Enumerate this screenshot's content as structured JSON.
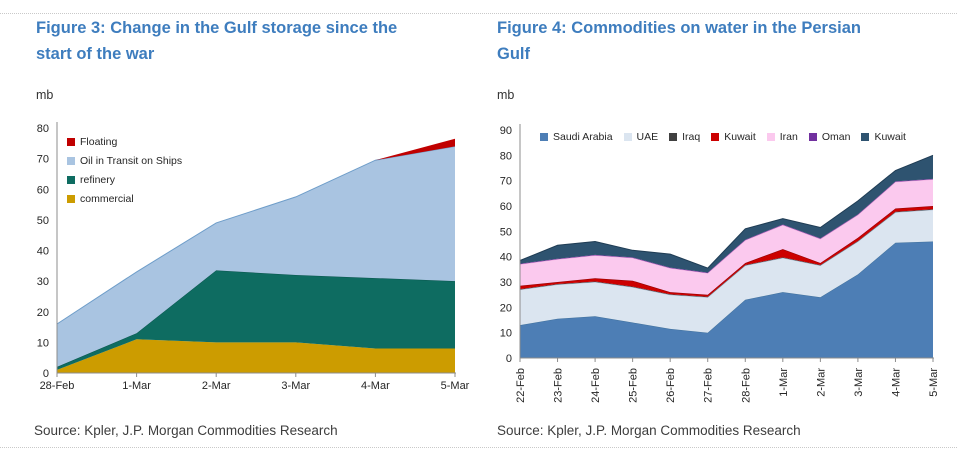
{
  "figures": [
    {
      "title": "Figure 3: Change in the Gulf storage since the start of the war",
      "unit": "mb",
      "source": "Source: Kpler, J.P. Morgan Commodities Research"
    },
    {
      "title": "Figure 4: Commodities on water in the Persian Gulf",
      "unit": "mb",
      "source": "Source: Kpler, J.P. Morgan Commodities Research"
    }
  ],
  "colors": {
    "title_blue": "#3E7DBE",
    "axis_gray": "#8c8c8c"
  },
  "chart_data": [
    {
      "id": "fig3",
      "type": "area",
      "stacked": true,
      "title": "Figure 3: Change in the Gulf storage since the start of the war",
      "ylabel": "mb",
      "xlabel": "",
      "ylim": [
        0,
        80
      ],
      "ytick_step": 10,
      "grid": false,
      "legend_position": "top-left-vertical",
      "legend_reverse": true,
      "categories": [
        "28-Feb",
        "1-Mar",
        "2-Mar",
        "3-Mar",
        "4-Mar",
        "5-Mar"
      ],
      "series": [
        {
          "name": "commercial",
          "color": "#CC9C00",
          "edge": null,
          "values": [
            1,
            11,
            10,
            10,
            8,
            8
          ]
        },
        {
          "name": "refinery",
          "color": "#0E6C61",
          "edge": "#0A564D",
          "values": [
            1,
            2,
            23.5,
            22,
            23,
            22
          ]
        },
        {
          "name": "Oil in Transit on Ships",
          "color": "#A9C4E1",
          "edge": "#6E9DC9",
          "values": [
            14,
            20,
            15.5,
            25.5,
            38.5,
            44
          ]
        },
        {
          "name": "Floating",
          "color": "#C00000",
          "edge": null,
          "values": [
            0,
            0,
            0,
            0,
            0,
            2.5
          ]
        }
      ]
    },
    {
      "id": "fig4",
      "type": "area",
      "stacked": true,
      "title": "Figure 4: Commodities on water in the Persian Gulf",
      "ylabel": "mb",
      "xlabel": "",
      "ylim": [
        0,
        90
      ],
      "ytick_step": 10,
      "grid": false,
      "legend_position": "top-horizontal",
      "legend_reverse": false,
      "categories": [
        "22-Feb",
        "23-Feb",
        "24-Feb",
        "25-Feb",
        "26-Feb",
        "27-Feb",
        "28-Feb",
        "1-Mar",
        "2-Mar",
        "3-Mar",
        "4-Mar",
        "5-Mar"
      ],
      "series": [
        {
          "name": "Saudi Arabia",
          "color": "#4D7EB5",
          "edge": "#41719C",
          "values": [
            13,
            15.5,
            16.5,
            14,
            11.5,
            10,
            23,
            26,
            24,
            33,
            45.5,
            46
          ]
        },
        {
          "name": "UAE",
          "color": "#DBE5F0",
          "edge": "#AFC0D4",
          "values": [
            14,
            13.5,
            13.5,
            14,
            13.5,
            14,
            13.5,
            13.5,
            12.5,
            13,
            12,
            12.5
          ]
        },
        {
          "name": "Iraq",
          "color": "#404040",
          "edge": null,
          "values": [
            0.2,
            0.2,
            0.2,
            0.2,
            0.2,
            0.2,
            0.2,
            0.2,
            0.2,
            0.2,
            0.2,
            0.2
          ]
        },
        {
          "name": "Kuwait",
          "color": "#CC0000",
          "edge": "#8E0000",
          "values": [
            1.3,
            0.8,
            1.3,
            2.3,
            0.8,
            0.8,
            0.8,
            3.3,
            0.8,
            1.3,
            1.3,
            1.3
          ]
        },
        {
          "name": "Iran",
          "color": "#FBC9EE",
          "edge": "#EFA8DC",
          "values": [
            8.5,
            9,
            9,
            9,
            9.5,
            8.5,
            9,
            9.5,
            9.5,
            9,
            10.5,
            10.5
          ]
        },
        {
          "name": "Oman",
          "color": "#71309F",
          "edge": null,
          "values": [
            0.2,
            0.2,
            0.2,
            0.2,
            0.2,
            0.2,
            0.2,
            0.2,
            0.2,
            0.2,
            0.2,
            0.2
          ]
        },
        {
          "name": "Kuwait",
          "color": "#2E5370",
          "edge": "#1F3C54",
          "values": [
            1.3,
            5.3,
            5.3,
            2.8,
            5.3,
            1.8,
            4.3,
            2.3,
            4.3,
            5.3,
            4.3,
            9.3
          ]
        }
      ]
    }
  ]
}
